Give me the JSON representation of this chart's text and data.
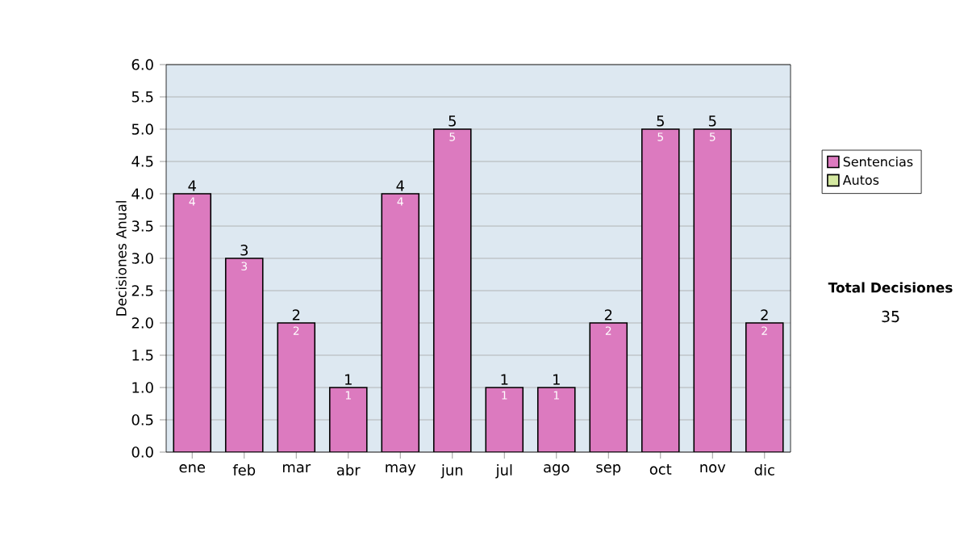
{
  "chart_data": {
    "type": "bar",
    "stacked": true,
    "ylabel": "Decisiones Anual",
    "categories": [
      "ene",
      "feb",
      "mar",
      "abr",
      "may",
      "jun",
      "jul",
      "ago",
      "sep",
      "oct",
      "nov",
      "dic"
    ],
    "series": [
      {
        "name": "Sentencias",
        "color": "#dc7abf",
        "values": [
          4,
          3,
          2,
          1,
          4,
          5,
          1,
          1,
          2,
          5,
          5,
          2
        ],
        "value_labels": [
          "4",
          "3",
          "2",
          "1",
          "4",
          "5",
          "1",
          "1",
          "2",
          "5",
          "5",
          "2"
        ]
      },
      {
        "name": "Autos",
        "color": "#d4e8a0",
        "values": [
          0,
          0,
          0,
          0,
          0,
          0,
          0,
          0,
          0,
          0,
          0,
          0
        ]
      }
    ],
    "totals": [
      "4",
      "3",
      "2",
      "1",
      "4",
      "5",
      "1",
      "1",
      "2",
      "5",
      "5",
      "2"
    ],
    "ylim": [
      0,
      6
    ],
    "yticks": [
      {
        "value": 0,
        "label": "0.0"
      },
      {
        "value": 0.5,
        "label": "0.5"
      },
      {
        "value": 1,
        "label": "1.0"
      },
      {
        "value": 1.5,
        "label": "1.5"
      },
      {
        "value": 2,
        "label": "2.0"
      },
      {
        "value": 2.5,
        "label": "2.5"
      },
      {
        "value": 3,
        "label": "3.0"
      },
      {
        "value": 3.5,
        "label": "3.5"
      },
      {
        "value": 4,
        "label": "4.0"
      },
      {
        "value": 4.5,
        "label": "4.5"
      },
      {
        "value": 5,
        "label": "5.0"
      },
      {
        "value": 5.5,
        "label": "5.5"
      },
      {
        "value": 6,
        "label": "6.0"
      }
    ],
    "grid": "y",
    "legend": "right",
    "annotations": [
      "Total Decisiones",
      "35"
    ]
  }
}
